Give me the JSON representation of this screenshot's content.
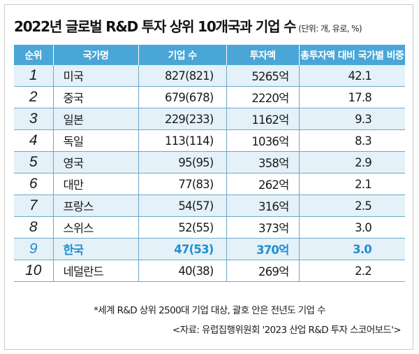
{
  "title": "2022년 글로벌 R&D 투자 상위 10개국과 기업 수",
  "unit_note": "(단위: 개, 유로, %)",
  "table": {
    "headers": [
      "순위",
      "국가명",
      "기업 수",
      "투자액",
      "총투자액 대비 국가별 비중"
    ],
    "rows": [
      {
        "rank": "1",
        "country": "미국",
        "companies": "827(821)",
        "investment": "5265억",
        "share": "42.1"
      },
      {
        "rank": "2",
        "country": "중국",
        "companies": "679(678)",
        "investment": "2220억",
        "share": "17.8"
      },
      {
        "rank": "3",
        "country": "일본",
        "companies": "229(233)",
        "investment": "1162억",
        "share": "9.3"
      },
      {
        "rank": "4",
        "country": "독일",
        "companies": "113(114)",
        "investment": "1036억",
        "share": "8.3"
      },
      {
        "rank": "5",
        "country": "영국",
        "companies": "95(95)",
        "investment": "358억",
        "share": "2.9"
      },
      {
        "rank": "6",
        "country": "대만",
        "companies": "77(83)",
        "investment": "262억",
        "share": "2.1"
      },
      {
        "rank": "7",
        "country": "프랑스",
        "companies": "54(57)",
        "investment": "316억",
        "share": "2.5"
      },
      {
        "rank": "8",
        "country": "스위스",
        "companies": "52(55)",
        "investment": "373억",
        "share": "3.0"
      },
      {
        "rank": "9",
        "country": "한국",
        "companies": "47(53)",
        "investment": "370억",
        "share": "3.0"
      },
      {
        "rank": "10",
        "country": "네덜란드",
        "companies": "40(38)",
        "investment": "269억",
        "share": "2.2"
      }
    ]
  },
  "highlight_color": "#1f8fd0",
  "header_color": "#49a6d6",
  "footnote": "*세계 R&D 상위 2500대 기업 대상, 괄호 안은 전년도 기업 수",
  "source": "<자료: 유럽집행위원회 '2023 산업 R&D 투자 스코어보드'>"
}
